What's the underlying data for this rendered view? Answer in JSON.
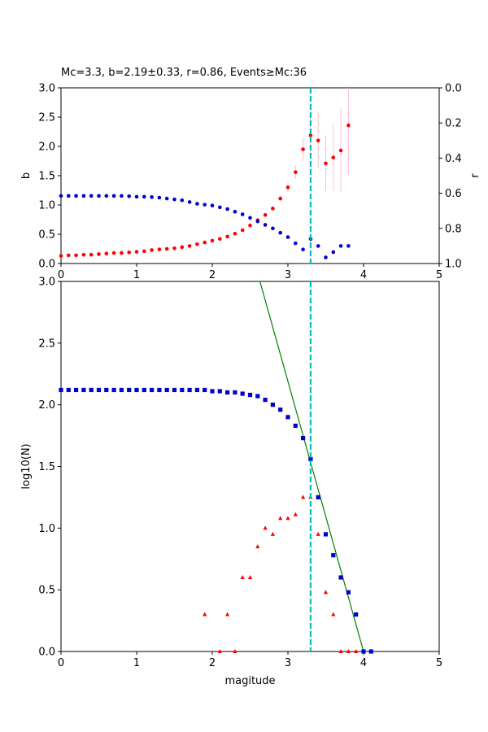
{
  "chart_data": [
    {
      "type": "scatter",
      "title": "Mc=3.3, b=2.19±0.33, r=0.86, Events≥Mc:36",
      "xlabel": "",
      "ylabel": "b",
      "ylabel_right": "r",
      "xlim": [
        0,
        5
      ],
      "ylim": [
        0,
        3
      ],
      "ylim_right": [
        1,
        0
      ],
      "xticks": [
        "0",
        "1",
        "2",
        "3",
        "4",
        "5"
      ],
      "yticks": [
        "0.0",
        "0.5",
        "1.0",
        "1.5",
        "2.0",
        "2.5",
        "3.0"
      ],
      "yticks_right": [
        "0.0",
        "0.2",
        "0.4",
        "0.6",
        "0.8",
        "1.0"
      ],
      "grid": false,
      "mc_line": 3.3,
      "colors": {
        "b": "#ff0000",
        "r": "#0000cc",
        "errorbar": "#ffc0cb",
        "mc": "#00bfbf"
      },
      "series": [
        {
          "axis": "left",
          "x": [
            0.0,
            0.1,
            0.2,
            0.3,
            0.4,
            0.5,
            0.6,
            0.7,
            0.8,
            0.9,
            1.0,
            1.1,
            1.2,
            1.3,
            1.4,
            1.5,
            1.6,
            1.7,
            1.8,
            1.9,
            2.0,
            2.1,
            2.2,
            2.3,
            2.4,
            2.5,
            2.6,
            2.7,
            2.8,
            2.9,
            3.0,
            3.1,
            3.2,
            3.3,
            3.4,
            3.5,
            3.6,
            3.7,
            3.8
          ],
          "y": [
            0.13,
            0.14,
            0.14,
            0.15,
            0.15,
            0.16,
            0.17,
            0.18,
            0.18,
            0.19,
            0.2,
            0.21,
            0.23,
            0.24,
            0.25,
            0.26,
            0.28,
            0.3,
            0.33,
            0.36,
            0.39,
            0.42,
            0.46,
            0.51,
            0.57,
            0.65,
            0.74,
            0.83,
            0.94,
            1.11,
            1.3,
            1.56,
            1.95,
            2.19,
            2.1,
            1.71,
            1.81,
            1.93,
            2.36
          ],
          "err": [
            0,
            0,
            0,
            0,
            0,
            0,
            0,
            0,
            0,
            0,
            0,
            0,
            0,
            0,
            0,
            0,
            0,
            0,
            0,
            0,
            0,
            0,
            0,
            0,
            0,
            0,
            0,
            0,
            0,
            0.05,
            0.08,
            0.12,
            0.2,
            0.33,
            0.48,
            0.47,
            0.57,
            0.72,
            0.85
          ]
        },
        {
          "axis": "right",
          "x": [
            0.0,
            0.1,
            0.2,
            0.3,
            0.4,
            0.5,
            0.6,
            0.7,
            0.8,
            0.9,
            1.0,
            1.1,
            1.2,
            1.3,
            1.4,
            1.5,
            1.6,
            1.7,
            1.8,
            1.9,
            2.0,
            2.1,
            2.2,
            2.3,
            2.4,
            2.5,
            2.6,
            2.7,
            2.8,
            2.9,
            3.0,
            3.1,
            3.2,
            3.3,
            3.4,
            3.5,
            3.6,
            3.7,
            3.8
          ],
          "y": [
            0.615,
            0.615,
            0.615,
            0.615,
            0.615,
            0.615,
            0.615,
            0.615,
            0.615,
            0.617,
            0.62,
            0.62,
            0.622,
            0.625,
            0.63,
            0.635,
            0.64,
            0.65,
            0.66,
            0.665,
            0.67,
            0.68,
            0.69,
            0.705,
            0.72,
            0.74,
            0.76,
            0.78,
            0.8,
            0.825,
            0.85,
            0.885,
            0.92,
            0.86,
            0.9,
            0.965,
            0.935,
            0.9,
            0.9
          ]
        }
      ]
    },
    {
      "type": "scatter",
      "title": "",
      "xlabel": "magitude",
      "ylabel": "log10(N)",
      "xlim": [
        0,
        5
      ],
      "ylim": [
        0,
        3
      ],
      "xticks": [
        "0",
        "1",
        "2",
        "3",
        "4",
        "5"
      ],
      "yticks": [
        "0.0",
        "0.5",
        "1.0",
        "1.5",
        "2.0",
        "2.5",
        "3.0"
      ],
      "grid": false,
      "mc_line": 3.3,
      "fit_line": {
        "x": [
          2.63,
          4.0
        ],
        "y": [
          3.0,
          0.0
        ]
      },
      "colors": {
        "cumulative": "#0000cc",
        "noncumulative": "#ff0000",
        "fit": "#008000",
        "mc": "#00bfbf"
      },
      "series": [
        {
          "marker": "square",
          "x": [
            0.0,
            0.1,
            0.2,
            0.3,
            0.4,
            0.5,
            0.6,
            0.7,
            0.8,
            0.9,
            1.0,
            1.1,
            1.2,
            1.3,
            1.4,
            1.5,
            1.6,
            1.7,
            1.8,
            1.9,
            2.0,
            2.1,
            2.2,
            2.3,
            2.4,
            2.5,
            2.6,
            2.7,
            2.8,
            2.9,
            3.0,
            3.1,
            3.2,
            3.3,
            3.4,
            3.5,
            3.6,
            3.7,
            3.8,
            3.9,
            4.0,
            4.1
          ],
          "y": [
            2.12,
            2.12,
            2.12,
            2.12,
            2.12,
            2.12,
            2.12,
            2.12,
            2.12,
            2.12,
            2.12,
            2.12,
            2.12,
            2.12,
            2.12,
            2.12,
            2.12,
            2.12,
            2.12,
            2.12,
            2.11,
            2.11,
            2.1,
            2.1,
            2.09,
            2.08,
            2.07,
            2.04,
            2.0,
            1.96,
            1.9,
            1.83,
            1.73,
            1.56,
            1.25,
            0.95,
            0.78,
            0.6,
            0.48,
            0.3,
            0.0,
            0.0
          ]
        },
        {
          "marker": "triangle",
          "x": [
            1.9,
            2.1,
            2.2,
            2.3,
            2.4,
            2.5,
            2.6,
            2.7,
            2.8,
            2.9,
            3.0,
            3.1,
            3.2,
            3.3,
            3.4,
            3.5,
            3.6,
            3.7,
            3.8,
            3.9
          ],
          "y": [
            0.3,
            0.0,
            0.3,
            0.0,
            0.6,
            0.6,
            0.85,
            1.0,
            0.95,
            1.08,
            1.08,
            1.11,
            1.25,
            1.25,
            0.95,
            0.48,
            0.3,
            0.0,
            0.0,
            0.0
          ]
        }
      ]
    }
  ]
}
